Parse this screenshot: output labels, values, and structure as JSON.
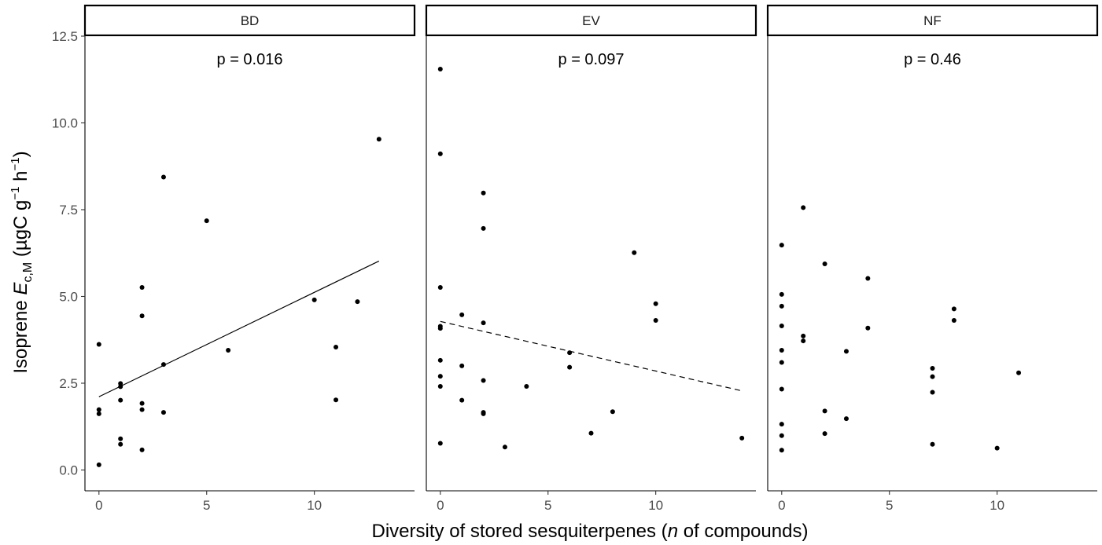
{
  "chart_data": {
    "type": "scatter",
    "facets": [
      {
        "label": "BD",
        "annotation": "p = 0.016",
        "points": [
          [
            0,
            3.62
          ],
          [
            0,
            1.74
          ],
          [
            0,
            1.62
          ],
          [
            0,
            0.15
          ],
          [
            1,
            2.49
          ],
          [
            1,
            2.4
          ],
          [
            1,
            2.01
          ],
          [
            1,
            0.9
          ],
          [
            1,
            0.74
          ],
          [
            2,
            5.26
          ],
          [
            2,
            4.44
          ],
          [
            2,
            1.92
          ],
          [
            2,
            1.74
          ],
          [
            2,
            0.58
          ],
          [
            3,
            8.44
          ],
          [
            3,
            3.04
          ],
          [
            3,
            1.66
          ],
          [
            5,
            7.18
          ],
          [
            6,
            3.45
          ],
          [
            10,
            4.9
          ],
          [
            11,
            3.54
          ],
          [
            11,
            2.02
          ],
          [
            12,
            4.85
          ],
          [
            13,
            9.53
          ]
        ],
        "fit": {
          "x": [
            0,
            13
          ],
          "y": [
            2.11,
            6.02
          ],
          "linetype": "solid"
        }
      },
      {
        "label": "EV",
        "annotation": "p = 0.097",
        "points": [
          [
            0,
            11.55
          ],
          [
            0,
            9.11
          ],
          [
            0,
            5.26
          ],
          [
            0,
            4.14
          ],
          [
            0,
            4.08
          ],
          [
            0,
            3.16
          ],
          [
            0,
            2.7
          ],
          [
            0,
            2.41
          ],
          [
            0,
            0.77
          ],
          [
            1,
            4.47
          ],
          [
            1,
            3.0
          ],
          [
            1,
            2.01
          ],
          [
            2,
            7.98
          ],
          [
            2,
            6.96
          ],
          [
            2,
            4.24
          ],
          [
            2,
            2.58
          ],
          [
            2,
            1.66
          ],
          [
            2,
            1.62
          ],
          [
            3,
            0.66
          ],
          [
            4,
            2.41
          ],
          [
            6,
            3.38
          ],
          [
            6,
            2.96
          ],
          [
            7,
            1.06
          ],
          [
            8,
            1.68
          ],
          [
            9,
            6.26
          ],
          [
            10,
            4.79
          ],
          [
            10,
            4.31
          ],
          [
            14,
            0.92
          ]
        ],
        "fit": {
          "x": [
            0,
            14
          ],
          "y": [
            4.28,
            2.28
          ],
          "linetype": "dashed"
        }
      },
      {
        "label": "NF",
        "annotation": "p = 0.46",
        "points": [
          [
            0,
            6.48
          ],
          [
            0,
            5.06
          ],
          [
            0,
            4.72
          ],
          [
            0,
            4.15
          ],
          [
            0,
            3.45
          ],
          [
            0,
            3.1
          ],
          [
            0,
            2.33
          ],
          [
            0,
            1.32
          ],
          [
            0,
            0.99
          ],
          [
            0,
            0.57
          ],
          [
            1,
            7.56
          ],
          [
            1,
            3.86
          ],
          [
            1,
            3.72
          ],
          [
            2,
            5.94
          ],
          [
            2,
            1.7
          ],
          [
            2,
            1.05
          ],
          [
            3,
            3.42
          ],
          [
            3,
            1.48
          ],
          [
            4,
            5.52
          ],
          [
            4,
            4.09
          ],
          [
            7,
            2.93
          ],
          [
            7,
            2.69
          ],
          [
            7,
            2.24
          ],
          [
            7,
            0.74
          ],
          [
            8,
            4.64
          ],
          [
            8,
            4.31
          ],
          [
            10,
            0.63
          ],
          [
            11,
            2.8
          ]
        ]
      }
    ],
    "xlabel_parts": [
      "Diversity of stored sesquiterpenes (",
      "n",
      " of compounds)"
    ],
    "ylabel_parts": {
      "prefix": "Isoprene ",
      "italic": "E",
      "sub": "c,M",
      "unit_open": " (µgC g",
      "sup1": "−1",
      "unit_mid": " h",
      "sup2": "−1",
      "unit_close": ")"
    },
    "x_ticks": [
      0,
      5,
      10
    ],
    "x_tick_labels": [
      "0",
      "5",
      "10"
    ],
    "y_ticks": [
      0,
      2.5,
      5,
      7.5,
      10,
      12.5
    ],
    "y_tick_labels": [
      "0.0",
      "2.5",
      "5.0",
      "7.5",
      "10.0",
      "12.5"
    ],
    "xlim": [
      -0.65,
      14.65
    ],
    "ylim": [
      -0.6,
      12.5
    ],
    "grid": false,
    "legend": "none"
  }
}
